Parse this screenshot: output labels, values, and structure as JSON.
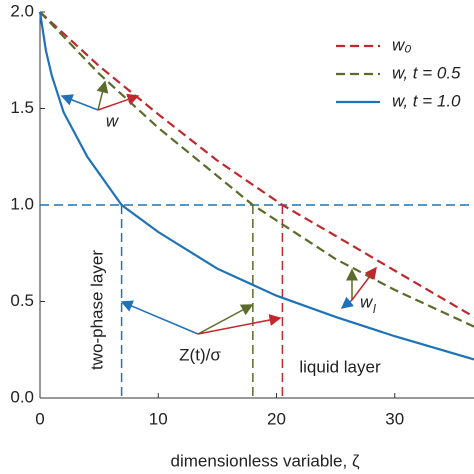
{
  "chart_data": {
    "type": "line",
    "x_label": "dimensionless variable, ζ",
    "xlim": [
      0,
      36.7
    ],
    "ylim": [
      0,
      2
    ],
    "xticks": [
      0,
      10,
      20,
      30
    ],
    "yticks": [
      {
        "value": 0,
        "label": "0.0"
      },
      {
        "value": 0.5,
        "label": "0.5"
      },
      {
        "value": 1,
        "label": "1.0"
      },
      {
        "value": 1.5,
        "label": "1.5"
      },
      {
        "value": 2,
        "label": "2.0"
      }
    ],
    "legend": "top-right",
    "series": [
      {
        "name": "w₀",
        "color": "#c0282d",
        "dash": true,
        "x": [
          0,
          5,
          10,
          15,
          20.5,
          25,
          30,
          36.7
        ],
        "values": [
          2,
          1.72,
          1.47,
          1.23,
          1.0,
          0.84,
          0.66,
          0.42
        ]
      },
      {
        "name": "w, t = 0.5",
        "color": "#5a6b2a",
        "dash": true,
        "x": [
          0,
          5,
          10,
          18,
          25,
          30,
          36.7
        ],
        "values": [
          2,
          1.68,
          1.4,
          1.0,
          0.72,
          0.56,
          0.37
        ]
      },
      {
        "name": "w, t = 1.0",
        "color": "#1f72b8",
        "dash": false,
        "x": [
          0,
          0.5,
          1,
          2,
          4,
          6.9,
          10,
          15,
          20,
          25,
          30,
          36.7
        ],
        "values": [
          2,
          1.8,
          1.67,
          1.48,
          1.25,
          1.0,
          0.86,
          0.67,
          0.53,
          0.42,
          0.32,
          0.2
        ]
      }
    ],
    "annotations": [
      "w",
      "w",
      "l",
      "Z(t)/σ",
      "two-phase layer",
      "liquid layer"
    ]
  }
}
